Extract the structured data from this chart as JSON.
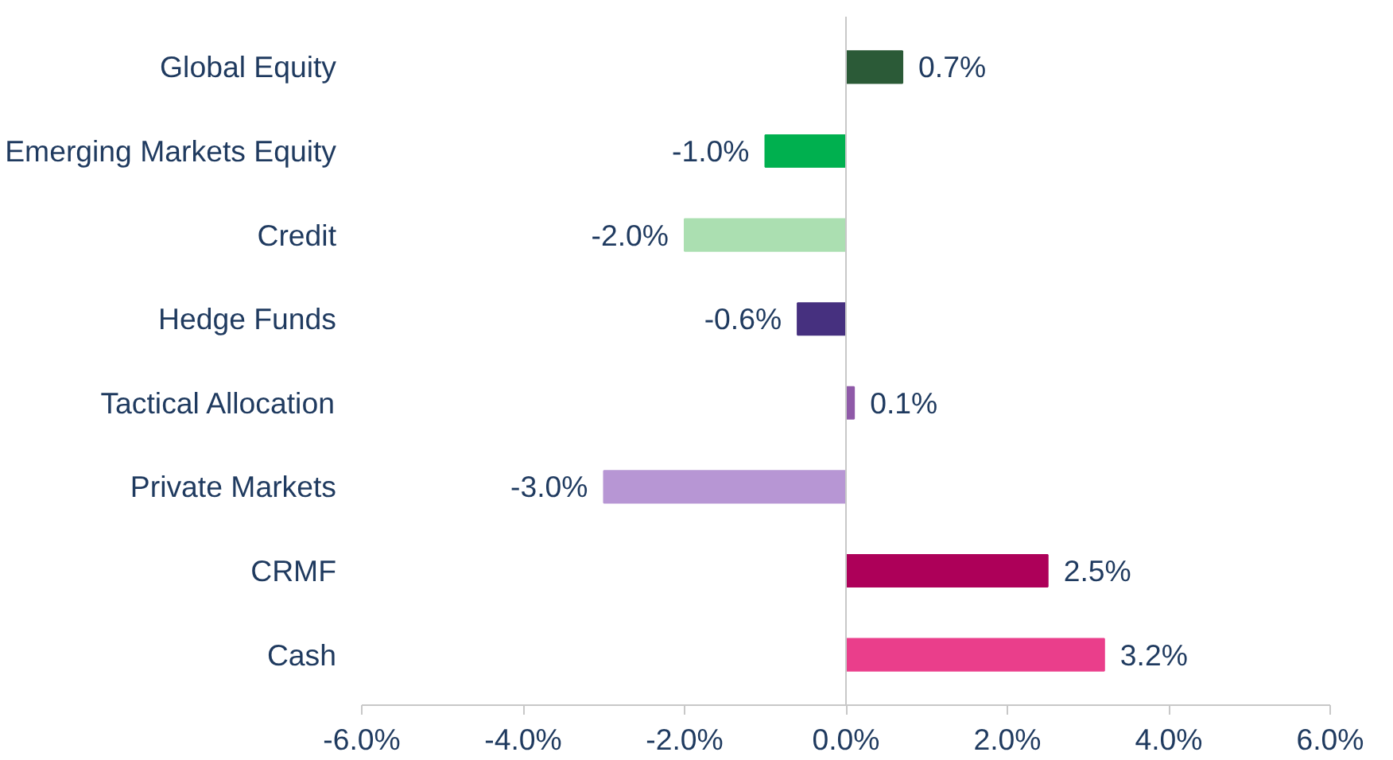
{
  "chart_data": {
    "type": "bar",
    "orientation": "horizontal",
    "categories": [
      "Global Equity",
      "Emerging Markets Equity",
      "Credit",
      "Hedge Funds",
      "Tactical Allocation",
      "Private Markets",
      "CRMF",
      "Cash"
    ],
    "values": [
      0.7,
      -1.0,
      -2.0,
      -0.6,
      0.1,
      -3.0,
      2.5,
      3.2
    ],
    "colors": [
      "#2b5a37",
      "#00b04f",
      "#abdfb1",
      "#46307f",
      "#8f5aa8",
      "#b796d4",
      "#ad0059",
      "#ea3e8b"
    ],
    "value_labels": [
      "0.7%",
      "-1.0%",
      "-2.0%",
      "-0.6%",
      "0.1%",
      "-3.0%",
      "2.5%",
      "3.2%"
    ],
    "xlim": [
      -6,
      6
    ],
    "xticks": [
      {
        "value": -6,
        "label": "-6.0%"
      },
      {
        "value": -4,
        "label": "-4.0%"
      },
      {
        "value": -2,
        "label": "-2.0%"
      },
      {
        "value": 0,
        "label": "0.0%"
      },
      {
        "value": 2,
        "label": "2.0%"
      },
      {
        "value": 4,
        "label": "4.0%"
      },
      {
        "value": 6,
        "label": "6.0%"
      }
    ],
    "ref_lines": [
      {
        "axis": "x",
        "value": 0,
        "color": "#c8c8c8"
      }
    ],
    "grid": false
  }
}
